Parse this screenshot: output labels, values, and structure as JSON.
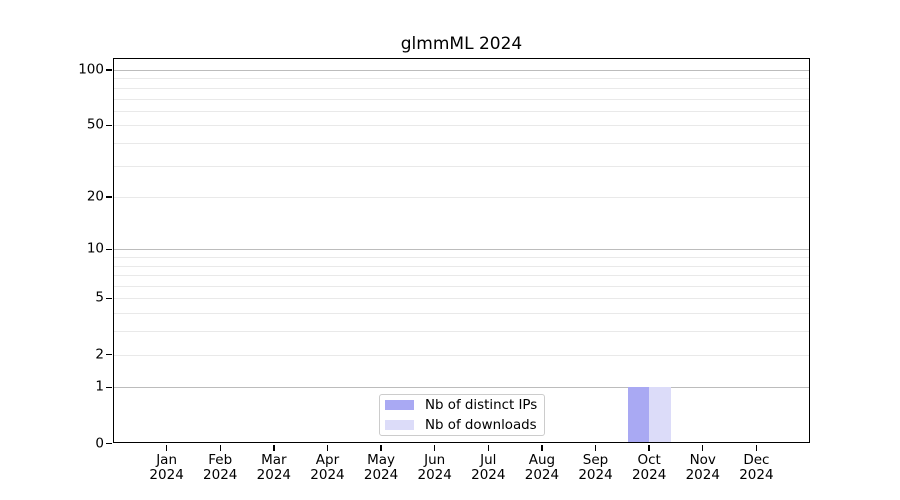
{
  "chart_data": {
    "type": "bar",
    "title": "glmmML 2024",
    "x_axis": {
      "categories": [
        "Jan",
        "Feb",
        "Mar",
        "Apr",
        "May",
        "Jun",
        "Jul",
        "Aug",
        "Sep",
        "Oct",
        "Nov",
        "Dec"
      ],
      "year_label": "2024"
    },
    "y_axis": {
      "scale": "log10(value+1)",
      "tick_values": [
        0,
        1,
        2,
        5,
        10,
        20,
        50,
        100
      ],
      "tick_labels": [
        "0",
        "1",
        "2",
        "5",
        "10",
        "20",
        "50",
        "100"
      ],
      "major_gridlines": [
        1,
        10,
        100
      ],
      "minor_gridlines": [
        2,
        3,
        4,
        5,
        6,
        7,
        8,
        9,
        20,
        30,
        40,
        50,
        60,
        70,
        80,
        90
      ]
    },
    "series": [
      {
        "name": "Nb of distinct IPs",
        "color": "#a9a9f3",
        "values": [
          0,
          0,
          0,
          0,
          0,
          0,
          0,
          0,
          0,
          1,
          0,
          0
        ]
      },
      {
        "name": "Nb of downloads",
        "color": "#dcdcf9",
        "values": [
          0,
          0,
          0,
          0,
          0,
          0,
          0,
          0,
          0,
          1,
          0,
          0
        ]
      }
    ],
    "legend_position": "bottom-center",
    "grid": true,
    "colors": {
      "background": "#ffffff",
      "axis": "#000000",
      "major_grid": "#bcbcbc",
      "minor_grid": "#e9e9e9",
      "text": "#000000",
      "legend_border": "#cccccc"
    }
  }
}
